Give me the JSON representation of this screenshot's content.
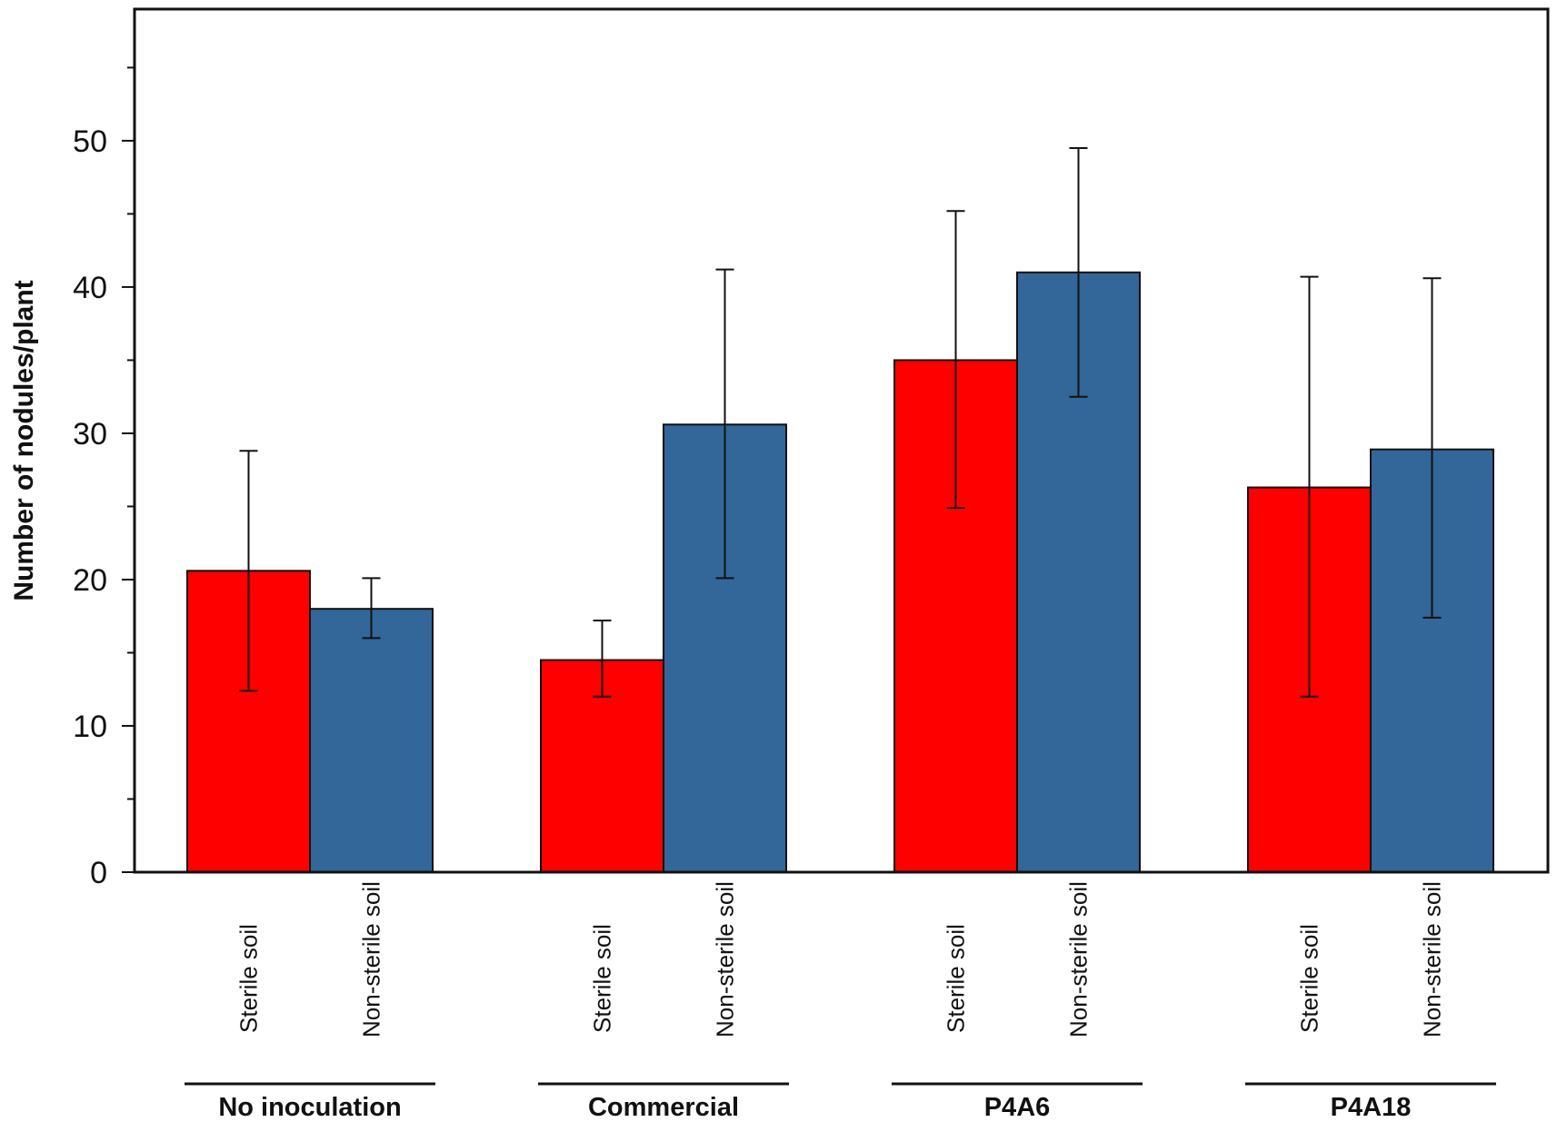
{
  "chart_data": {
    "type": "bar",
    "title": "",
    "xlabel": "",
    "ylabel": "Number of nodules/plant",
    "ylim": [
      0,
      59
    ],
    "yticks": [
      0,
      10,
      20,
      30,
      40,
      50
    ],
    "yminor_step": 5,
    "groups": [
      "No inoculation",
      "Commercial",
      "P4A6",
      "P4A18"
    ],
    "series": [
      {
        "name": "Sterile soil",
        "color": "#ff0000",
        "values": [
          20.6,
          14.5,
          35.0,
          26.3
        ],
        "err_upper": [
          28.8,
          17.2,
          45.2,
          40.7
        ],
        "err_lower": [
          12.4,
          12.0,
          24.9,
          12.0
        ]
      },
      {
        "name": "Non-sterile soil",
        "color": "#336699",
        "values": [
          18.0,
          30.6,
          41.0,
          28.9
        ],
        "err_upper": [
          20.1,
          41.2,
          49.5,
          40.6
        ],
        "err_lower": [
          16.0,
          20.1,
          32.5,
          17.4
        ]
      }
    ]
  }
}
